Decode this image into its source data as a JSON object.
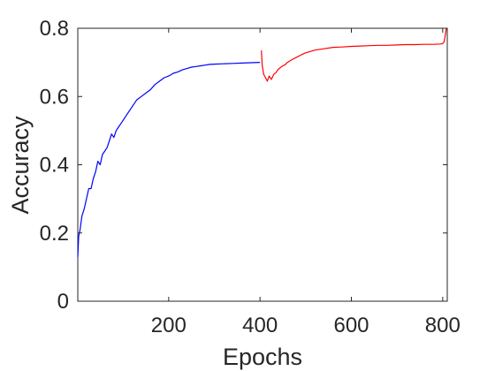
{
  "chart_data": {
    "type": "line",
    "title": "",
    "xlabel": "Epochs",
    "ylabel": "Accuracy",
    "xlim": [
      1,
      810
    ],
    "ylim": [
      0,
      0.8
    ],
    "xticks": [
      200,
      400,
      600,
      800
    ],
    "yticks": [
      0,
      0.2,
      0.4,
      0.6,
      0.8
    ],
    "xtick_labels": [
      "200",
      "400",
      "600",
      "800"
    ],
    "ytick_labels": [
      "0",
      "0.2",
      "0.4",
      "0.6",
      "0.8"
    ],
    "grid": false,
    "series": [
      {
        "color": "#0000ff",
        "x": [
          1,
          3,
          6,
          10,
          15,
          20,
          25,
          30,
          35,
          40,
          45,
          50,
          55,
          60,
          65,
          70,
          75,
          80,
          85,
          90,
          95,
          100,
          110,
          120,
          130,
          140,
          150,
          160,
          170,
          180,
          190,
          200,
          210,
          220,
          230,
          240,
          250,
          260,
          270,
          280,
          290,
          300,
          320,
          340,
          360,
          380,
          400
        ],
        "y": [
          0.13,
          0.19,
          0.21,
          0.25,
          0.27,
          0.3,
          0.33,
          0.33,
          0.36,
          0.38,
          0.41,
          0.4,
          0.43,
          0.44,
          0.45,
          0.47,
          0.49,
          0.48,
          0.5,
          0.51,
          0.52,
          0.53,
          0.55,
          0.57,
          0.59,
          0.6,
          0.61,
          0.62,
          0.635,
          0.645,
          0.655,
          0.66,
          0.668,
          0.672,
          0.678,
          0.682,
          0.686,
          0.688,
          0.69,
          0.692,
          0.694,
          0.695,
          0.696,
          0.697,
          0.698,
          0.699,
          0.7
        ]
      },
      {
        "color": "#ff0000",
        "x": [
          403,
          405,
          408,
          412,
          416,
          420,
          425,
          430,
          435,
          440,
          445,
          450,
          455,
          460,
          465,
          470,
          480,
          490,
          500,
          510,
          520,
          540,
          560,
          580,
          600,
          620,
          640,
          660,
          680,
          700,
          720,
          740,
          760,
          780,
          795,
          800,
          803,
          805,
          808
        ],
        "y": [
          0.735,
          0.69,
          0.665,
          0.655,
          0.645,
          0.66,
          0.65,
          0.665,
          0.67,
          0.68,
          0.685,
          0.69,
          0.693,
          0.7,
          0.704,
          0.708,
          0.715,
          0.722,
          0.728,
          0.732,
          0.736,
          0.74,
          0.744,
          0.745,
          0.747,
          0.748,
          0.749,
          0.75,
          0.75,
          0.751,
          0.752,
          0.752,
          0.753,
          0.753,
          0.754,
          0.755,
          0.76,
          0.775,
          0.8
        ]
      }
    ]
  }
}
